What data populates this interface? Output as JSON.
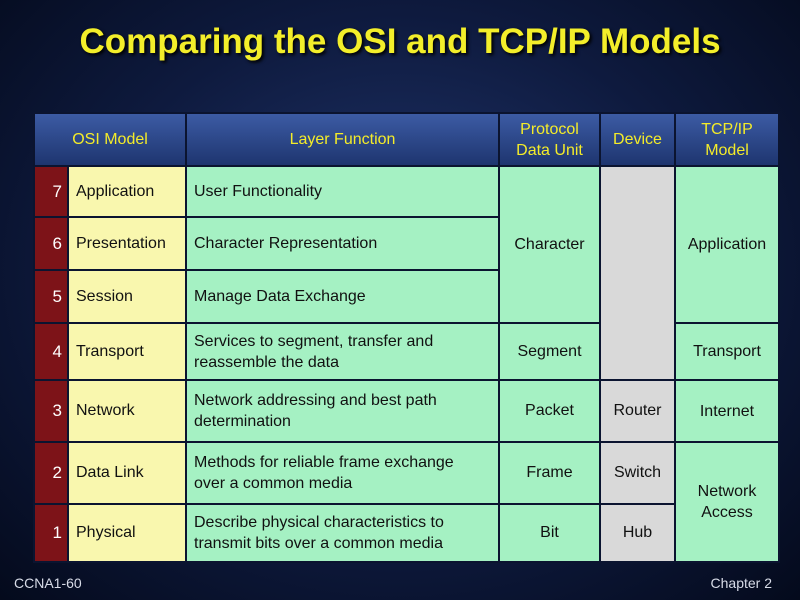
{
  "title": "Comparing the OSI and TCP/IP Models",
  "headers": {
    "osi": "OSI Model",
    "function": "Layer Function",
    "pdu_line1": "Protocol",
    "pdu_line2": "Data Unit",
    "device": "Device",
    "tcp_line1": "TCP/IP",
    "tcp_line2": "Model"
  },
  "rows": [
    {
      "num": "7",
      "layer": "Application",
      "func1": "User Functionality",
      "func2": ""
    },
    {
      "num": "6",
      "layer": "Presentation",
      "func1": "Character Representation",
      "func2": ""
    },
    {
      "num": "5",
      "layer": "Session",
      "func1": "Manage Data Exchange",
      "func2": ""
    },
    {
      "num": "4",
      "layer": "Transport",
      "func1": "Services to segment, transfer and",
      "func2": "reassemble the data"
    },
    {
      "num": "3",
      "layer": "Network",
      "func1": "Network addressing and best path",
      "func2": "determination"
    },
    {
      "num": "2",
      "layer": "Data Link",
      "func1": "Methods for reliable frame exchange",
      "func2": "over a common media"
    },
    {
      "num": "1",
      "layer": "Physical",
      "func1": "Describe physical characteristics to",
      "func2": "transmit bits over a common media"
    }
  ],
  "pdu": {
    "upper": "Character",
    "transport": "Segment",
    "network": "Packet",
    "datalink": "Frame",
    "physical": "Bit"
  },
  "device": {
    "network": "Router",
    "datalink": "Switch",
    "physical": "Hub"
  },
  "tcpip": {
    "application": "Application",
    "transport": "Transport",
    "internet": "Internet",
    "access_line1": "Network",
    "access_line2": "Access"
  },
  "footer": {
    "left": "CCNA1-60",
    "right": "Chapter 2"
  }
}
